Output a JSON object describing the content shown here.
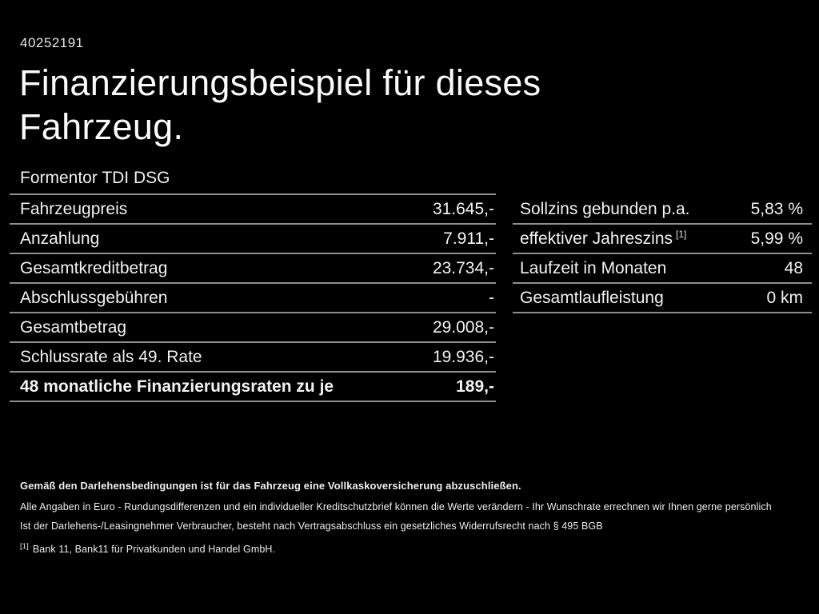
{
  "colors": {
    "background": "#000000",
    "text": "#f2f2f2",
    "divider": "#8f8f8f"
  },
  "header": {
    "id_number": "40252191",
    "title_line1": "Finanzierungsbeispiel für dieses",
    "title_line2": "Fahrzeug.",
    "model": "Formentor TDI DSG"
  },
  "left_table": {
    "rows": [
      {
        "label": "Fahrzeugpreis",
        "value": "31.645,-"
      },
      {
        "label": "Anzahlung",
        "value": "7.911,-"
      },
      {
        "label": "Gesamtkreditbetrag",
        "value": "23.734,-"
      },
      {
        "label": "Abschlussgebühren",
        "value": "-"
      },
      {
        "label": "Gesamtbetrag",
        "value": "29.008,-"
      },
      {
        "label": "Schlussrate als 49. Rate",
        "value": "19.936,-"
      },
      {
        "label": "48 monatliche Finanzierungsraten zu je",
        "value": "189,-"
      }
    ]
  },
  "right_table": {
    "rows": [
      {
        "label": "Sollzins gebunden p.a.",
        "value": "5,83 %"
      },
      {
        "label": "effektiver Jahreszins",
        "sup": "[1]",
        "value": "5,99 %"
      },
      {
        "label": "Laufzeit in Monaten",
        "value": "48"
      },
      {
        "label": "Gesamtlaufleistung",
        "value": "0 km"
      }
    ]
  },
  "footer": {
    "line1": "Gemäß den Darlehensbedingungen ist für das Fahrzeug eine Vollkaskoversicherung abzuschließen.",
    "line2": "Alle Angaben in Euro - Rundungsdifferenzen und ein individueller Kreditschutzbrief können die Werte verändern - Ihr Wunschrate errechnen wir Ihnen gerne persönlich",
    "line3": "Ist der Darlehens-/Leasingnehmer Verbraucher, besteht nach Vertragsabschluss ein gesetzliches Widerrufsrecht nach § 495 BGB",
    "footnote_marker": "[1]",
    "footnote_text": "Bank 11, Bank11 für Privatkunden und Handel GmbH."
  }
}
